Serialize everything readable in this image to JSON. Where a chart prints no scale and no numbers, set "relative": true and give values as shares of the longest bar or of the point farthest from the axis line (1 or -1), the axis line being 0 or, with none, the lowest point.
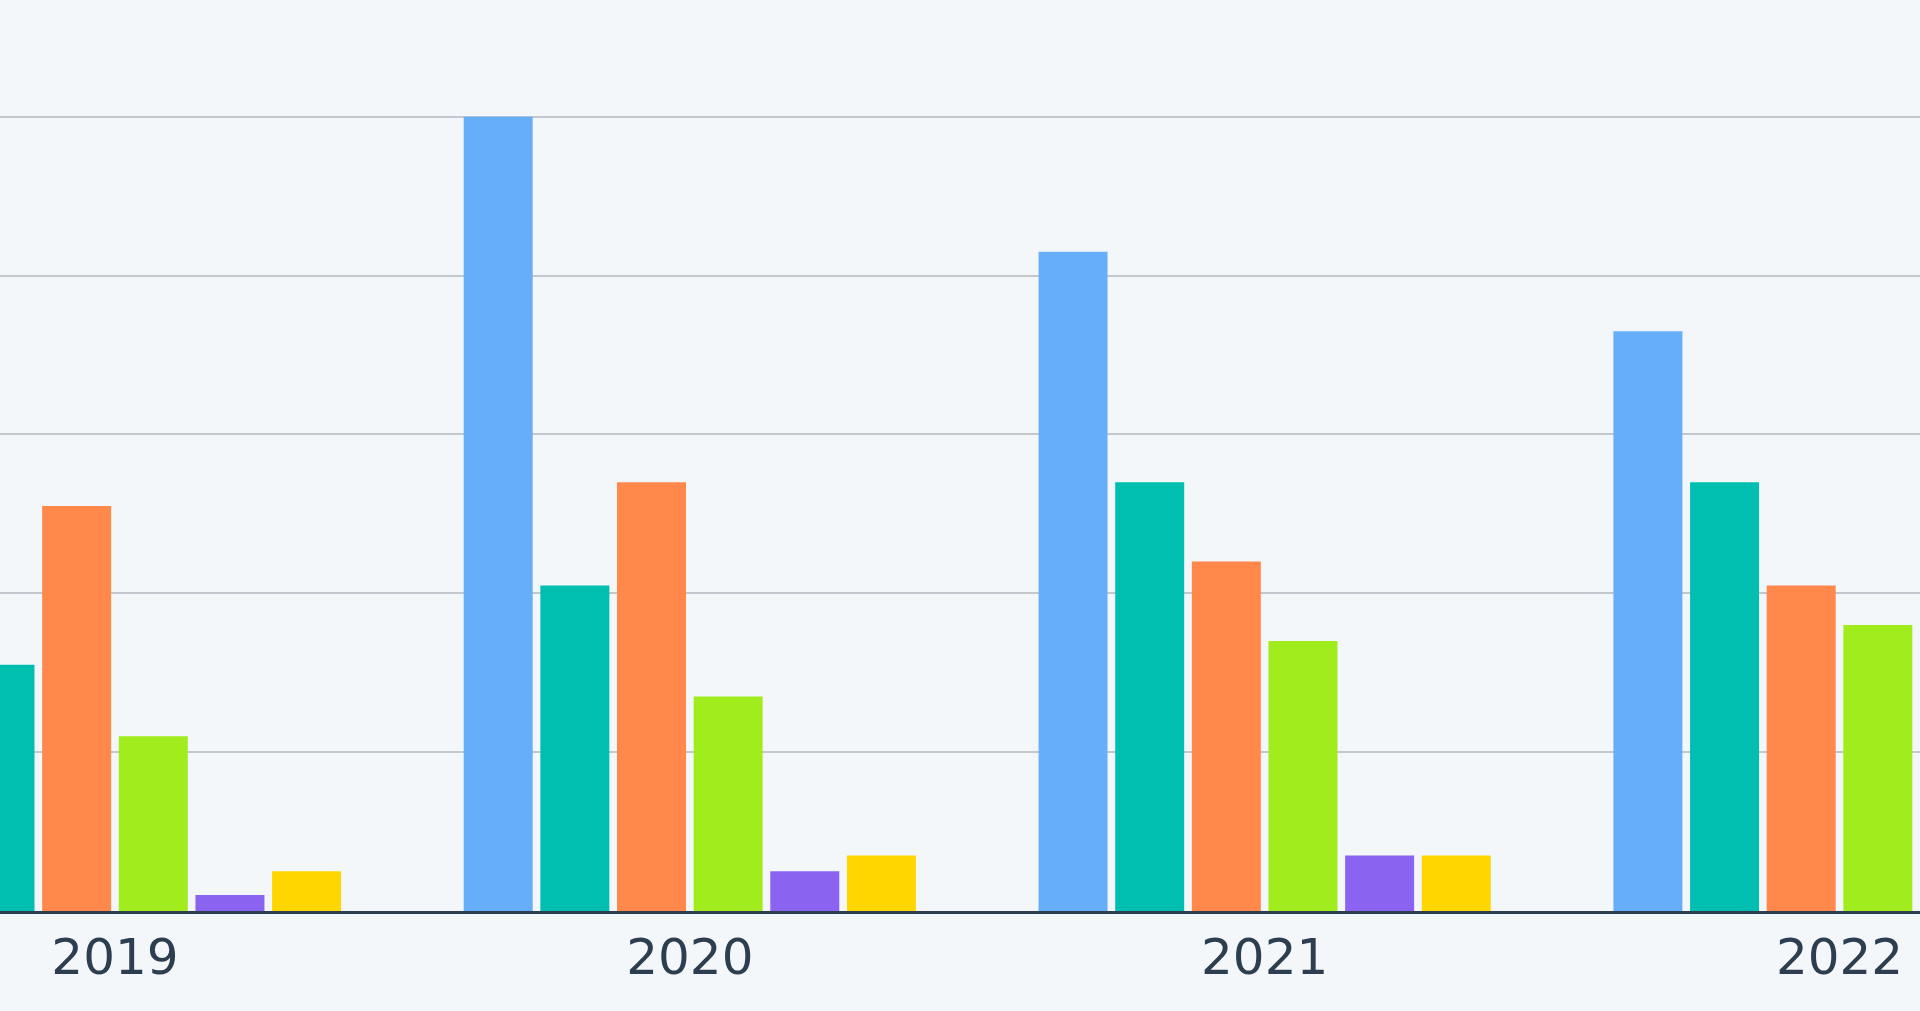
{
  "chart_data": {
    "type": "bar",
    "relative": true,
    "grid": "y",
    "categories": [
      "2019",
      "2020",
      "2021",
      "2022"
    ],
    "series": [
      {
        "color": "#66aef9",
        "values": [
          null,
          1,
          0.83,
          0.73
        ]
      },
      {
        "color": "#00bfb0",
        "values": [
          0.31,
          0.41,
          0.54,
          0.54
        ]
      },
      {
        "color": "#ff884a",
        "values": [
          0.51,
          0.54,
          0.44,
          0.41
        ]
      },
      {
        "color": "#a0ec1c",
        "values": [
          0.22,
          0.27,
          0.34,
          0.36
        ]
      },
      {
        "color": "#8a63f0",
        "values": [
          0.02,
          0.05,
          0.07,
          null
        ]
      },
      {
        "color": "#ffd600",
        "values": [
          0.05,
          0.07,
          0.07,
          null
        ]
      }
    ]
  }
}
